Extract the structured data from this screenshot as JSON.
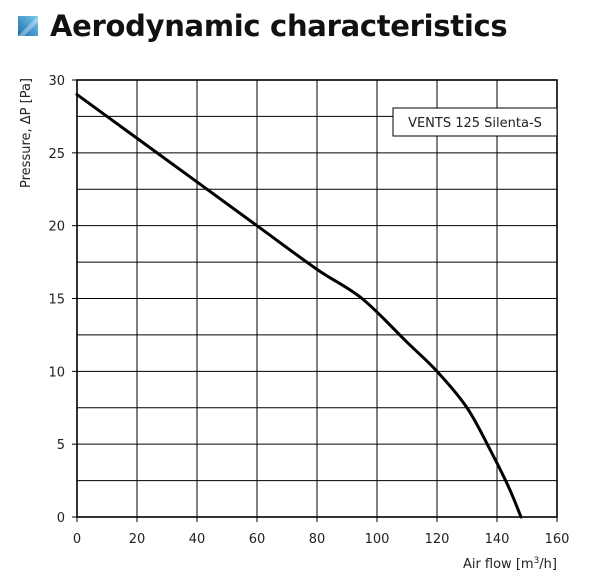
{
  "header": {
    "title": "Aerodynamic characteristics",
    "icon": "brand-square-icon",
    "icon_color_light": "#7cc7ea",
    "icon_color_dark": "#1c6fb0"
  },
  "chart_data": {
    "type": "line",
    "xlabel_prefix": "Air flow [m",
    "xlabel_sup": "3",
    "xlabel_suffix": "/h]",
    "ylabel": "Pressure, ΔP [Pa]",
    "xlim": [
      0,
      160
    ],
    "ylim": [
      0,
      30
    ],
    "xticks": [
      0,
      20,
      40,
      60,
      80,
      100,
      120,
      140,
      160
    ],
    "yticks": [
      0,
      5,
      10,
      15,
      20,
      25,
      30
    ],
    "x_gridlines": [
      0,
      20,
      40,
      60,
      80,
      100,
      120,
      140,
      160
    ],
    "y_gridlines": [
      0,
      2.5,
      5,
      7.5,
      10,
      12.5,
      15,
      17.5,
      20,
      22.5,
      25,
      27.5,
      30
    ],
    "grid": true,
    "legend_position": "top-right",
    "series": [
      {
        "name": "VENTS 125 Silenta-S",
        "color": "#000000",
        "x": [
          0,
          20,
          40,
          60,
          80,
          95,
          110,
          120,
          130,
          138,
          144,
          148
        ],
        "y": [
          29,
          26,
          23,
          20,
          17,
          15,
          12,
          10,
          7.5,
          4.5,
          2,
          0
        ]
      }
    ]
  }
}
